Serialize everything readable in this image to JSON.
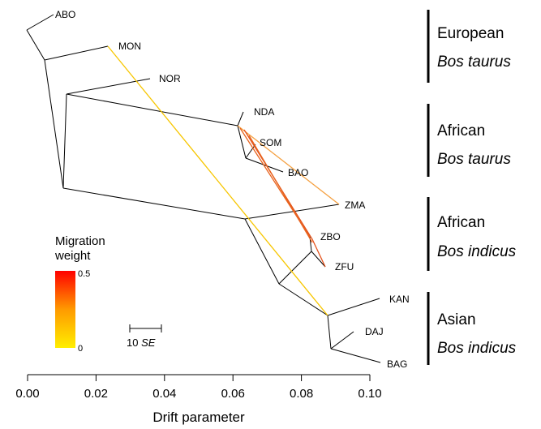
{
  "leaves": [
    {
      "id": "ABO",
      "label": "ABO"
    },
    {
      "id": "MON",
      "label": "MON"
    },
    {
      "id": "NOR",
      "label": "NOR"
    },
    {
      "id": "NDA",
      "label": "NDA"
    },
    {
      "id": "SOM",
      "label": "SOM"
    },
    {
      "id": "BAO",
      "label": "BAO"
    },
    {
      "id": "ZMA",
      "label": "ZMA"
    },
    {
      "id": "ZBO",
      "label": "ZBO"
    },
    {
      "id": "ZFU",
      "label": "ZFU"
    },
    {
      "id": "KAN",
      "label": "KAN"
    },
    {
      "id": "DAJ",
      "label": "DAJ"
    },
    {
      "id": "BAG",
      "label": "BAG"
    }
  ],
  "groups": [
    {
      "name": "European",
      "sub": "Bos taurus"
    },
    {
      "name": "African",
      "sub": "Bos taurus"
    },
    {
      "name": "African",
      "sub": "Bos indicus"
    },
    {
      "name": "Asian",
      "sub": "Bos indicus"
    }
  ],
  "legend": {
    "title_line1": "Migration",
    "title_line2": "weight",
    "max_label": "0.5",
    "min_label": "0",
    "color_low": "#ffee00",
    "color_high": "#ff0000"
  },
  "scale_bar": {
    "value": "10",
    "unit": "SE"
  },
  "axis": {
    "title": "Drift parameter",
    "ticks": [
      "0.00",
      "0.02",
      "0.04",
      "0.06",
      "0.08",
      "0.10"
    ],
    "tick_values": [
      0.0,
      0.02,
      0.04,
      0.06,
      0.08,
      0.1
    ]
  },
  "migration_edges": [
    {
      "from": "MON",
      "to": "KAN",
      "weight": 0.1,
      "color": "#f7c600"
    },
    {
      "from": "NDA",
      "to": "ZMA",
      "weight": 0.3,
      "color": "#f5a040"
    },
    {
      "from": "NDA",
      "to": "ZBO",
      "weight": 0.38,
      "color": "#e8631d"
    },
    {
      "from": "NDA",
      "to": "ZFU",
      "weight": 0.4,
      "color": "#e4511a"
    }
  ]
}
